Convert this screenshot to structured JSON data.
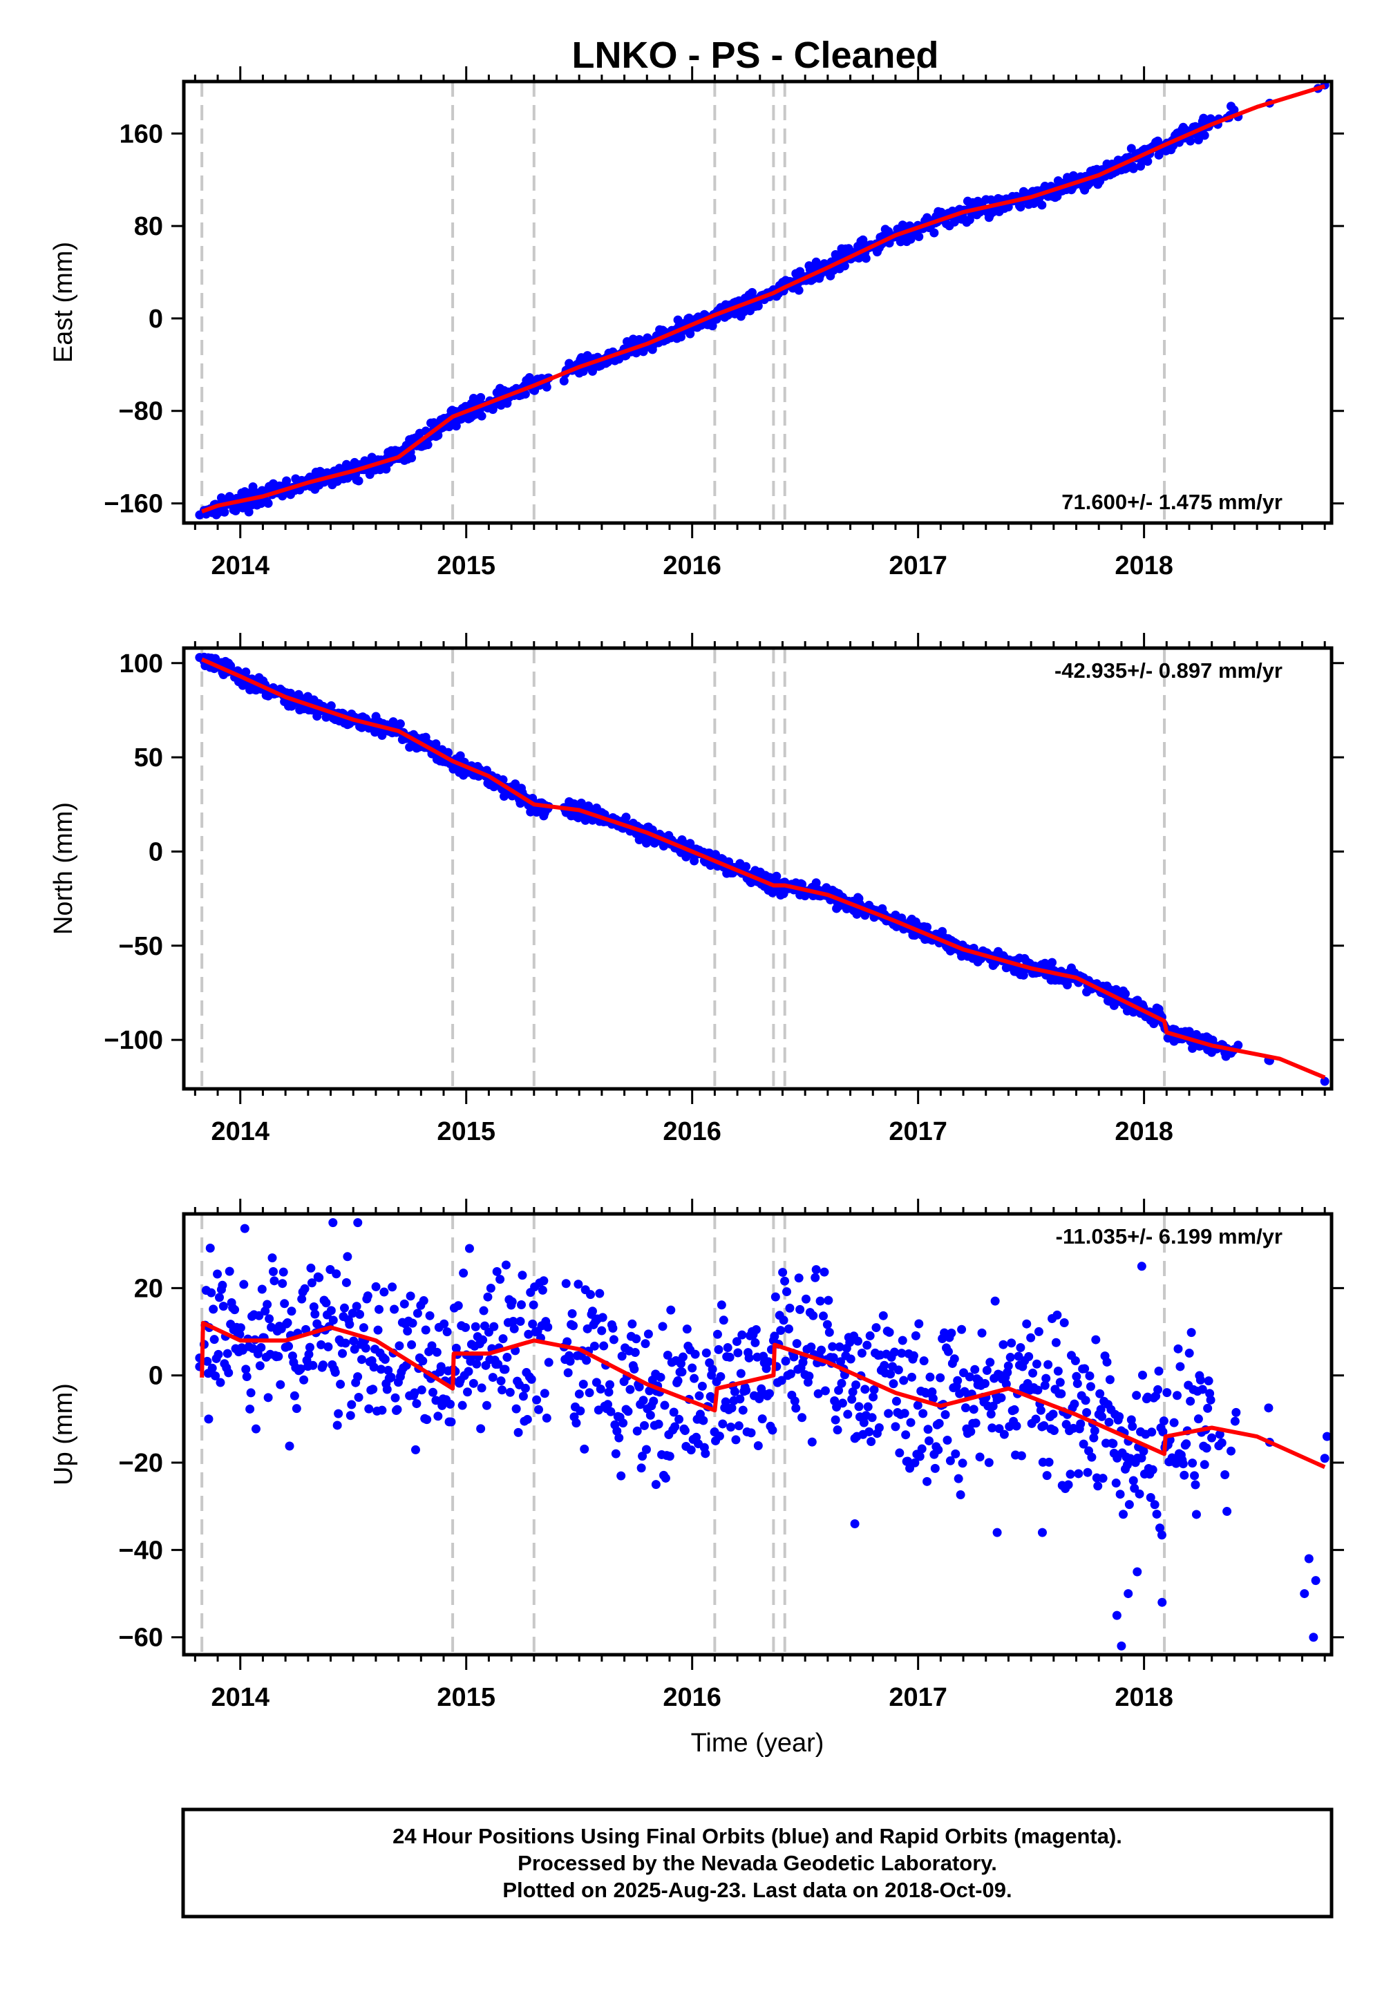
{
  "title": "LNKO  - PS - Cleaned",
  "footer": {
    "lines": [
      "24 Hour Positions Using Final Orbits (blue) and Rapid Orbits (magenta).",
      "Processed by the Nevada Geodetic Laboratory.",
      "Plotted on 2025-Aug-23. Last data on 2018-Oct-09."
    ]
  },
  "colors": {
    "points": "#0000ff",
    "model": "#ff0000",
    "breaks": "#c8c8c8"
  },
  "chart_data": [
    {
      "type": "scatter",
      "component": "east",
      "ylabel": "East (mm)",
      "xlabel": "",
      "rate": "71.600+/- 1.475 mm/yr",
      "rate_position": "bottom-right",
      "xlim": [
        2013.75,
        2018.83
      ],
      "ylim": [
        -177,
        205
      ],
      "xticks": [
        2014,
        2015,
        2016,
        2017,
        2018
      ],
      "yticks": [
        -160,
        -80,
        0,
        80,
        160
      ],
      "breaks": [
        2013.83,
        2014.94,
        2015.3,
        2016.1,
        2016.36,
        2016.41,
        2018.09
      ],
      "model": [
        [
          2013.83,
          -167
        ],
        [
          2013.9,
          -162
        ],
        [
          2014.1,
          -154
        ],
        [
          2014.3,
          -142
        ],
        [
          2014.5,
          -132
        ],
        [
          2014.7,
          -120
        ],
        [
          2014.94,
          -85
        ],
        [
          2015.1,
          -73
        ],
        [
          2015.3,
          -58
        ],
        [
          2015.5,
          -42
        ],
        [
          2015.8,
          -22
        ],
        [
          2016.1,
          3
        ],
        [
          2016.36,
          22
        ],
        [
          2016.41,
          27
        ],
        [
          2016.6,
          44
        ],
        [
          2016.9,
          72
        ],
        [
          2017.2,
          92
        ],
        [
          2017.5,
          105
        ],
        [
          2017.8,
          124
        ],
        [
          2018.09,
          150
        ],
        [
          2018.3,
          168
        ],
        [
          2018.5,
          183
        ],
        [
          2018.8,
          201
        ]
      ],
      "noise": 4,
      "points": [
        [
          2013.82,
          -170
        ],
        [
          2013.84,
          -168
        ],
        [
          2018.77,
          199
        ],
        [
          2018.8,
          202
        ]
      ]
    },
    {
      "type": "scatter",
      "component": "north",
      "ylabel": "North (mm)",
      "xlabel": "",
      "rate": "-42.935+/- 0.897 mm/yr",
      "rate_position": "top-right",
      "xlim": [
        2013.75,
        2018.83
      ],
      "ylim": [
        -126,
        108
      ],
      "xticks": [
        2014,
        2015,
        2016,
        2017,
        2018
      ],
      "yticks": [
        -100,
        -50,
        0,
        50,
        100
      ],
      "breaks": [
        2013.83,
        2014.94,
        2015.3,
        2016.1,
        2016.36,
        2016.41,
        2018.09
      ],
      "model": [
        [
          2013.83,
          102
        ],
        [
          2014.0,
          93
        ],
        [
          2014.2,
          82
        ],
        [
          2014.5,
          70
        ],
        [
          2014.7,
          64
        ],
        [
          2014.94,
          48
        ],
        [
          2015.1,
          40
        ],
        [
          2015.3,
          25
        ],
        [
          2015.5,
          22
        ],
        [
          2015.8,
          10
        ],
        [
          2016.1,
          -5
        ],
        [
          2016.36,
          -18
        ],
        [
          2016.41,
          -18
        ],
        [
          2016.6,
          -23
        ],
        [
          2016.9,
          -37
        ],
        [
          2017.2,
          -52
        ],
        [
          2017.5,
          -62
        ],
        [
          2017.7,
          -67
        ],
        [
          2018.09,
          -90
        ],
        [
          2018.1,
          -96
        ],
        [
          2018.3,
          -103
        ],
        [
          2018.6,
          -110
        ],
        [
          2018.8,
          -120
        ]
      ],
      "noise": 2.2,
      "points": [
        [
          2013.82,
          103
        ],
        [
          2013.84,
          101
        ],
        [
          2018.8,
          -122
        ]
      ]
    },
    {
      "type": "scatter",
      "component": "up",
      "ylabel": "Up (mm)",
      "xlabel": "Time (year)",
      "rate": "-11.035+/- 6.199 mm/yr",
      "rate_position": "top-right",
      "xlim": [
        2013.75,
        2018.83
      ],
      "ylim": [
        -64,
        37
      ],
      "xticks": [
        2014,
        2015,
        2016,
        2017,
        2018
      ],
      "yticks": [
        -60,
        -40,
        -20,
        0,
        20
      ],
      "breaks": [
        2013.83,
        2014.94,
        2015.3,
        2016.1,
        2016.36,
        2016.41,
        2018.09
      ],
      "model": [
        [
          2013.83,
          -0.5
        ],
        [
          2013.835,
          12
        ],
        [
          2014.0,
          8
        ],
        [
          2014.2,
          8
        ],
        [
          2014.4,
          11
        ],
        [
          2014.6,
          8
        ],
        [
          2014.94,
          -3
        ],
        [
          2014.945,
          5
        ],
        [
          2015.1,
          5
        ],
        [
          2015.3,
          8
        ],
        [
          2015.5,
          6
        ],
        [
          2015.8,
          -2
        ],
        [
          2016.1,
          -8
        ],
        [
          2016.11,
          -3
        ],
        [
          2016.36,
          0
        ],
        [
          2016.365,
          7
        ],
        [
          2016.6,
          3
        ],
        [
          2016.9,
          -4
        ],
        [
          2017.1,
          -7
        ],
        [
          2017.4,
          -3
        ],
        [
          2017.7,
          -9
        ],
        [
          2018.09,
          -18
        ],
        [
          2018.095,
          -14
        ],
        [
          2018.3,
          -12
        ],
        [
          2018.5,
          -14
        ],
        [
          2018.8,
          -21
        ]
      ],
      "noise": 9,
      "points": [
        [
          2013.82,
          2
        ],
        [
          2013.82,
          4
        ],
        [
          2013.86,
          -10
        ],
        [
          2014.41,
          35
        ],
        [
          2014.52,
          35
        ],
        [
          2015.84,
          -25
        ],
        [
          2016.72,
          -34
        ],
        [
          2017.35,
          -36
        ],
        [
          2017.55,
          -36
        ],
        [
          2017.88,
          -55
        ],
        [
          2017.9,
          -62
        ],
        [
          2017.93,
          -50
        ],
        [
          2017.97,
          -45
        ],
        [
          2017.99,
          25
        ],
        [
          2018.08,
          -52
        ],
        [
          2018.71,
          -50
        ],
        [
          2018.73,
          -42
        ],
        [
          2018.75,
          -60
        ],
        [
          2018.76,
          -47
        ],
        [
          2018.8,
          -19
        ],
        [
          2018.81,
          -14
        ]
      ]
    }
  ]
}
